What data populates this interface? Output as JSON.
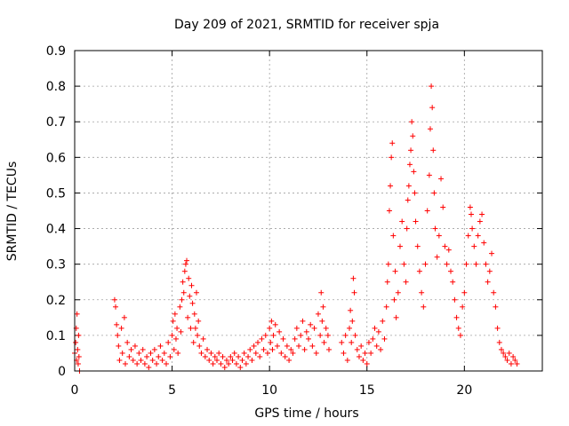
{
  "chart_data": {
    "type": "scatter",
    "title": "Day 209 of 2021, SRMTID for receiver spja",
    "xlabel": "GPS time / hours",
    "ylabel": "SRMTID / TECUs",
    "xlim": [
      0,
      24
    ],
    "ylim": [
      0,
      0.9
    ],
    "xticks": [
      0,
      5,
      10,
      15,
      20
    ],
    "xtick_labels": [
      "0",
      "5",
      "10",
      "15",
      "20"
    ],
    "yticks": [
      0,
      0.1,
      0.2,
      0.3,
      0.4,
      0.5,
      0.6,
      0.7,
      0.8,
      0.9
    ],
    "ytick_labels": [
      "0",
      "0.1",
      "0.2",
      "0.3",
      "0.4",
      "0.5",
      "0.6",
      "0.7",
      "0.8",
      "0.9"
    ],
    "grid": true,
    "marker": "+",
    "marker_color": "#ff0000",
    "series": [
      {
        "name": "SRMTID",
        "points": [
          [
            0.0,
            0.05
          ],
          [
            0.05,
            0.08
          ],
          [
            0.08,
            0.12
          ],
          [
            0.1,
            0.03
          ],
          [
            0.12,
            0.16
          ],
          [
            0.15,
            0.06
          ],
          [
            0.18,
            0.02
          ],
          [
            0.2,
            0.1
          ],
          [
            0.22,
            0.04
          ],
          [
            0.25,
            0.0
          ],
          [
            2.05,
            0.2
          ],
          [
            2.1,
            0.18
          ],
          [
            2.15,
            0.13
          ],
          [
            2.2,
            0.1
          ],
          [
            2.25,
            0.07
          ],
          [
            2.3,
            0.03
          ],
          [
            2.4,
            0.12
          ],
          [
            2.45,
            0.05
          ],
          [
            2.55,
            0.15
          ],
          [
            2.6,
            0.02
          ],
          [
            2.7,
            0.08
          ],
          [
            2.8,
            0.04
          ],
          [
            2.9,
            0.06
          ],
          [
            3.0,
            0.03
          ],
          [
            3.1,
            0.07
          ],
          [
            3.2,
            0.02
          ],
          [
            3.3,
            0.05
          ],
          [
            3.4,
            0.03
          ],
          [
            3.5,
            0.06
          ],
          [
            3.6,
            0.02
          ],
          [
            3.7,
            0.04
          ],
          [
            3.8,
            0.01
          ],
          [
            3.9,
            0.05
          ],
          [
            4.0,
            0.03
          ],
          [
            4.1,
            0.06
          ],
          [
            4.2,
            0.02
          ],
          [
            4.3,
            0.04
          ],
          [
            4.4,
            0.07
          ],
          [
            4.5,
            0.03
          ],
          [
            4.6,
            0.05
          ],
          [
            4.7,
            0.02
          ],
          [
            4.8,
            0.08
          ],
          [
            4.9,
            0.04
          ],
          [
            5.0,
            0.1
          ],
          [
            5.05,
            0.14
          ],
          [
            5.1,
            0.06
          ],
          [
            5.15,
            0.16
          ],
          [
            5.2,
            0.09
          ],
          [
            5.25,
            0.12
          ],
          [
            5.3,
            0.05
          ],
          [
            5.4,
            0.18
          ],
          [
            5.45,
            0.11
          ],
          [
            5.5,
            0.2
          ],
          [
            5.55,
            0.25
          ],
          [
            5.6,
            0.22
          ],
          [
            5.65,
            0.28
          ],
          [
            5.7,
            0.3
          ],
          [
            5.75,
            0.31
          ],
          [
            5.8,
            0.15
          ],
          [
            5.85,
            0.26
          ],
          [
            5.9,
            0.21
          ],
          [
            5.95,
            0.12
          ],
          [
            6.0,
            0.24
          ],
          [
            6.05,
            0.19
          ],
          [
            6.1,
            0.08
          ],
          [
            6.15,
            0.16
          ],
          [
            6.2,
            0.12
          ],
          [
            6.25,
            0.22
          ],
          [
            6.3,
            0.1
          ],
          [
            6.35,
            0.14
          ],
          [
            6.4,
            0.07
          ],
          [
            6.5,
            0.05
          ],
          [
            6.6,
            0.09
          ],
          [
            6.7,
            0.04
          ],
          [
            6.8,
            0.06
          ],
          [
            6.9,
            0.03
          ],
          [
            7.0,
            0.05
          ],
          [
            7.1,
            0.02
          ],
          [
            7.2,
            0.04
          ],
          [
            7.3,
            0.03
          ],
          [
            7.4,
            0.05
          ],
          [
            7.5,
            0.02
          ],
          [
            7.6,
            0.04
          ],
          [
            7.7,
            0.01
          ],
          [
            7.8,
            0.03
          ],
          [
            7.9,
            0.02
          ],
          [
            8.0,
            0.04
          ],
          [
            8.1,
            0.03
          ],
          [
            8.2,
            0.05
          ],
          [
            8.3,
            0.02
          ],
          [
            8.4,
            0.04
          ],
          [
            8.5,
            0.01
          ],
          [
            8.6,
            0.03
          ],
          [
            8.7,
            0.05
          ],
          [
            8.8,
            0.02
          ],
          [
            8.9,
            0.04
          ],
          [
            9.0,
            0.06
          ],
          [
            9.1,
            0.03
          ],
          [
            9.2,
            0.07
          ],
          [
            9.3,
            0.05
          ],
          [
            9.4,
            0.08
          ],
          [
            9.5,
            0.04
          ],
          [
            9.6,
            0.09
          ],
          [
            9.7,
            0.06
          ],
          [
            9.8,
            0.1
          ],
          [
            9.9,
            0.05
          ],
          [
            10.0,
            0.12
          ],
          [
            10.05,
            0.08
          ],
          [
            10.1,
            0.14
          ],
          [
            10.15,
            0.06
          ],
          [
            10.2,
            0.1
          ],
          [
            10.3,
            0.13
          ],
          [
            10.4,
            0.07
          ],
          [
            10.5,
            0.11
          ],
          [
            10.6,
            0.05
          ],
          [
            10.7,
            0.09
          ],
          [
            10.8,
            0.04
          ],
          [
            10.9,
            0.07
          ],
          [
            11.0,
            0.03
          ],
          [
            11.1,
            0.06
          ],
          [
            11.2,
            0.05
          ],
          [
            11.3,
            0.09
          ],
          [
            11.4,
            0.12
          ],
          [
            11.5,
            0.07
          ],
          [
            11.6,
            0.1
          ],
          [
            11.7,
            0.14
          ],
          [
            11.8,
            0.06
          ],
          [
            11.9,
            0.11
          ],
          [
            12.0,
            0.09
          ],
          [
            12.1,
            0.13
          ],
          [
            12.2,
            0.07
          ],
          [
            12.3,
            0.12
          ],
          [
            12.4,
            0.05
          ],
          [
            12.5,
            0.16
          ],
          [
            12.6,
            0.1
          ],
          [
            12.65,
            0.22
          ],
          [
            12.7,
            0.14
          ],
          [
            12.75,
            0.18
          ],
          [
            12.8,
            0.08
          ],
          [
            12.9,
            0.12
          ],
          [
            13.0,
            0.1
          ],
          [
            13.05,
            0.06
          ],
          [
            13.7,
            0.08
          ],
          [
            13.8,
            0.05
          ],
          [
            13.9,
            0.1
          ],
          [
            14.0,
            0.03
          ],
          [
            14.1,
            0.12
          ],
          [
            14.15,
            0.17
          ],
          [
            14.2,
            0.08
          ],
          [
            14.25,
            0.14
          ],
          [
            14.3,
            0.26
          ],
          [
            14.35,
            0.22
          ],
          [
            14.4,
            0.1
          ],
          [
            14.5,
            0.06
          ],
          [
            14.6,
            0.04
          ],
          [
            14.7,
            0.07
          ],
          [
            14.8,
            0.03
          ],
          [
            14.9,
            0.05
          ],
          [
            15.0,
            0.02
          ],
          [
            15.1,
            0.08
          ],
          [
            15.2,
            0.05
          ],
          [
            15.3,
            0.09
          ],
          [
            15.4,
            0.12
          ],
          [
            15.5,
            0.07
          ],
          [
            15.6,
            0.11
          ],
          [
            15.7,
            0.06
          ],
          [
            15.8,
            0.14
          ],
          [
            15.9,
            0.09
          ],
          [
            16.0,
            0.18
          ],
          [
            16.05,
            0.25
          ],
          [
            16.1,
            0.3
          ],
          [
            16.15,
            0.45
          ],
          [
            16.2,
            0.52
          ],
          [
            16.25,
            0.6
          ],
          [
            16.3,
            0.64
          ],
          [
            16.35,
            0.38
          ],
          [
            16.4,
            0.2
          ],
          [
            16.45,
            0.28
          ],
          [
            16.5,
            0.15
          ],
          [
            16.6,
            0.22
          ],
          [
            16.7,
            0.35
          ],
          [
            16.8,
            0.42
          ],
          [
            16.9,
            0.3
          ],
          [
            17.0,
            0.25
          ],
          [
            17.05,
            0.4
          ],
          [
            17.1,
            0.48
          ],
          [
            17.15,
            0.52
          ],
          [
            17.2,
            0.58
          ],
          [
            17.25,
            0.62
          ],
          [
            17.3,
            0.7
          ],
          [
            17.35,
            0.66
          ],
          [
            17.4,
            0.56
          ],
          [
            17.45,
            0.5
          ],
          [
            17.5,
            0.42
          ],
          [
            17.6,
            0.35
          ],
          [
            17.7,
            0.28
          ],
          [
            17.8,
            0.22
          ],
          [
            17.9,
            0.18
          ],
          [
            18.0,
            0.3
          ],
          [
            18.1,
            0.45
          ],
          [
            18.2,
            0.55
          ],
          [
            18.25,
            0.68
          ],
          [
            18.3,
            0.8
          ],
          [
            18.35,
            0.74
          ],
          [
            18.4,
            0.62
          ],
          [
            18.45,
            0.5
          ],
          [
            18.5,
            0.4
          ],
          [
            18.6,
            0.32
          ],
          [
            18.7,
            0.38
          ],
          [
            18.8,
            0.54
          ],
          [
            18.9,
            0.46
          ],
          [
            19.0,
            0.35
          ],
          [
            19.1,
            0.3
          ],
          [
            19.2,
            0.34
          ],
          [
            19.3,
            0.28
          ],
          [
            19.4,
            0.25
          ],
          [
            19.5,
            0.2
          ],
          [
            19.6,
            0.15
          ],
          [
            19.7,
            0.12
          ],
          [
            19.8,
            0.1
          ],
          [
            19.9,
            0.18
          ],
          [
            20.0,
            0.22
          ],
          [
            20.1,
            0.3
          ],
          [
            20.2,
            0.38
          ],
          [
            20.3,
            0.46
          ],
          [
            20.35,
            0.44
          ],
          [
            20.4,
            0.4
          ],
          [
            20.5,
            0.35
          ],
          [
            20.6,
            0.3
          ],
          [
            20.7,
            0.38
          ],
          [
            20.8,
            0.42
          ],
          [
            20.9,
            0.44
          ],
          [
            21.0,
            0.36
          ],
          [
            21.1,
            0.3
          ],
          [
            21.2,
            0.25
          ],
          [
            21.3,
            0.28
          ],
          [
            21.4,
            0.33
          ],
          [
            21.5,
            0.22
          ],
          [
            21.6,
            0.18
          ],
          [
            21.7,
            0.12
          ],
          [
            21.8,
            0.08
          ],
          [
            21.9,
            0.06
          ],
          [
            22.0,
            0.05
          ],
          [
            22.1,
            0.04
          ],
          [
            22.2,
            0.03
          ],
          [
            22.3,
            0.05
          ],
          [
            22.4,
            0.02
          ],
          [
            22.5,
            0.04
          ],
          [
            22.6,
            0.03
          ],
          [
            22.7,
            0.02
          ]
        ]
      }
    ]
  }
}
